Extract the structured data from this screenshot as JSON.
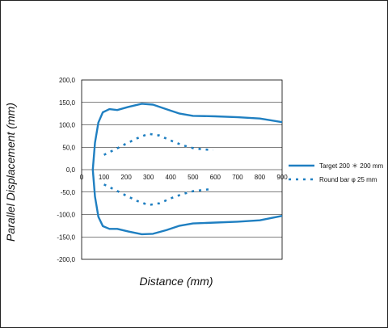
{
  "chart_data": {
    "type": "line",
    "title": "",
    "xlabel": "Distance (mm)",
    "ylabel": "Parallel Displacement (mm)",
    "xlim": [
      0,
      900
    ],
    "ylim": [
      -200,
      200
    ],
    "x_ticks": [
      "0",
      "100",
      "200",
      "300",
      "400",
      "500",
      "600",
      "700",
      "800",
      "900"
    ],
    "y_ticks": [
      "200,0",
      "150,0",
      "100,0",
      "50,0",
      "0,0",
      "-50,0",
      "-100,0",
      "-150,0",
      "-200,0"
    ],
    "grid": "horizontal",
    "legend_position": "right",
    "colors": {
      "series": "#1f7fc1",
      "grid": "#000000"
    },
    "series": [
      {
        "name": "Target 200 ＊ 200 mm",
        "style": "solid",
        "branches": [
          [
            [
              50,
              0
            ],
            [
              60,
              60
            ],
            [
              75,
              105
            ],
            [
              95,
              128
            ],
            [
              125,
              135
            ],
            [
              160,
              133
            ],
            [
              210,
              140
            ],
            [
              270,
              147
            ],
            [
              320,
              145
            ],
            [
              380,
              135
            ],
            [
              440,
              125
            ],
            [
              500,
              120
            ],
            [
              600,
              119
            ],
            [
              700,
              117
            ],
            [
              800,
              114
            ],
            [
              900,
              106
            ]
          ],
          [
            [
              50,
              0
            ],
            [
              60,
              -60
            ],
            [
              75,
              -105
            ],
            [
              95,
              -126
            ],
            [
              125,
              -132
            ],
            [
              160,
              -132
            ],
            [
              210,
              -138
            ],
            [
              270,
              -144
            ],
            [
              320,
              -143
            ],
            [
              380,
              -135
            ],
            [
              440,
              -125
            ],
            [
              500,
              -120
            ],
            [
              600,
              -118
            ],
            [
              700,
              -116
            ],
            [
              800,
              -113
            ],
            [
              900,
              -103
            ]
          ]
        ]
      },
      {
        "name": "Round bar   φ 25 mm",
        "style": "dotted",
        "branches": [
          [
            [
              100,
              33
            ],
            [
              150,
              45
            ],
            [
              200,
              58
            ],
            [
              250,
              70
            ],
            [
              300,
              80
            ],
            [
              350,
              76
            ],
            [
              400,
              65
            ],
            [
              450,
              55
            ],
            [
              500,
              48
            ],
            [
              550,
              45
            ],
            [
              590,
              44
            ]
          ],
          [
            [
              100,
              -33
            ],
            [
              150,
              -45
            ],
            [
              200,
              -58
            ],
            [
              250,
              -70
            ],
            [
              300,
              -79
            ],
            [
              350,
              -75
            ],
            [
              400,
              -64
            ],
            [
              450,
              -55
            ],
            [
              500,
              -48
            ],
            [
              550,
              -45
            ],
            [
              590,
              -43
            ]
          ]
        ]
      }
    ]
  }
}
